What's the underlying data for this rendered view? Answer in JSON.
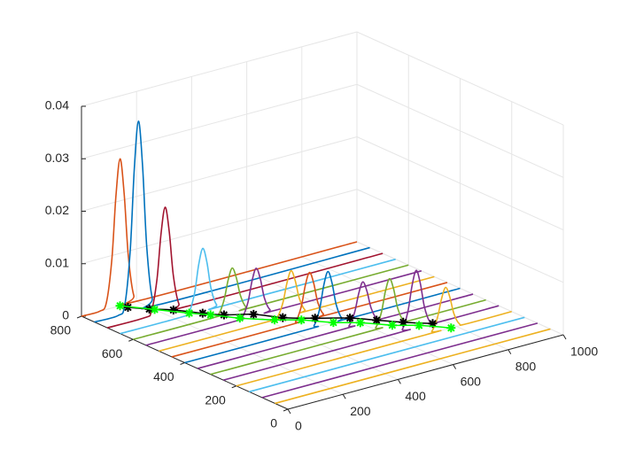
{
  "chart_data": {
    "type": "line3d",
    "xlim": [
      0,
      1000
    ],
    "xticks": [
      0,
      200,
      400,
      600,
      800,
      1000
    ],
    "ylim": [
      0,
      800
    ],
    "yticks": [
      0,
      200,
      400,
      600,
      800
    ],
    "zlim": [
      0,
      0.04
    ],
    "zticks": [
      0,
      0.01,
      0.02,
      0.03,
      0.04
    ],
    "grid": true,
    "series": [
      {
        "y": 800,
        "color": "#D95319",
        "x": [
          0,
          65,
          90,
          110,
          125,
          140,
          155,
          170,
          190,
          215,
          1000
        ],
        "values": [
          0,
          0,
          0.00123,
          0.0091,
          0.0211,
          0.028,
          0.0211,
          0.0091,
          0.00123,
          0,
          0
        ]
      },
      {
        "y": 750,
        "color": "#0072BD",
        "x": [
          0,
          85,
          110,
          130,
          145,
          160,
          175,
          190,
          210,
          235,
          1000
        ],
        "values": [
          0,
          0,
          0.00158,
          0.0117,
          0.0272,
          0.036,
          0.0272,
          0.0117,
          0.00158,
          0,
          0
        ]
      },
      {
        "y": 700,
        "color": "#A2142F",
        "x": [
          0,
          135,
          160,
          180,
          195,
          210,
          225,
          240,
          260,
          285,
          1000
        ],
        "values": [
          0,
          0,
          0.00088,
          0.0065,
          0.0151,
          0.02,
          0.0151,
          0.0065,
          0.00088,
          0,
          0
        ]
      },
      {
        "y": 650,
        "color": "#4DBEEE",
        "x": [
          0,
          225,
          250,
          270,
          285,
          300,
          315,
          330,
          350,
          375,
          1000
        ],
        "values": [
          0,
          0,
          0.00053,
          0.0039,
          0.0091,
          0.012,
          0.0091,
          0.0039,
          0.00053,
          0,
          0
        ]
      },
      {
        "y": 600,
        "color": "#77AC30",
        "x": [
          0,
          285,
          310,
          330,
          345,
          360,
          375,
          390,
          410,
          435,
          1000
        ],
        "values": [
          0,
          0,
          0.00037,
          0.0028,
          0.0064,
          0.0085,
          0.0064,
          0.0028,
          0.00037,
          0,
          0
        ]
      },
      {
        "y": 550,
        "color": "#7E2F8E",
        "x": [
          0,
          325,
          350,
          370,
          385,
          400,
          415,
          430,
          450,
          475,
          1000
        ],
        "values": [
          0,
          0,
          0.0004,
          0.0029,
          0.0068,
          0.009,
          0.0068,
          0.0029,
          0.0004,
          0,
          0
        ]
      },
      {
        "y": 500,
        "color": "#EDB120",
        "x": [
          0,
          405,
          430,
          450,
          465,
          480,
          495,
          510,
          530,
          555,
          1000
        ],
        "values": [
          0,
          0,
          0.00037,
          0.0028,
          0.0064,
          0.0085,
          0.0064,
          0.0028,
          0.00037,
          0,
          0
        ]
      },
      {
        "y": 450,
        "color": "#D95319",
        "x": [
          0,
          425,
          450,
          470,
          485,
          500,
          515,
          530,
          550,
          575,
          1000
        ],
        "values": [
          0,
          0,
          0.0004,
          0.0029,
          0.0068,
          0.009,
          0.0068,
          0.0029,
          0.0004,
          0,
          0
        ]
      },
      {
        "y": 400,
        "color": "#0072BD",
        "x": [
          0,
          445,
          470,
          490,
          505,
          520,
          535,
          550,
          570,
          595,
          1000
        ],
        "values": [
          0,
          0,
          0.00044,
          0.0033,
          0.0076,
          0.01,
          0.0076,
          0.0033,
          0.00044,
          0,
          0
        ]
      },
      {
        "y": 350,
        "color": "#7E2F8E",
        "x": [
          0,
          525,
          550,
          570,
          585,
          600,
          615,
          630,
          650,
          675,
          1000
        ],
        "values": [
          0,
          0,
          0.00035,
          0.0026,
          0.006,
          0.008,
          0.006,
          0.0026,
          0.00035,
          0,
          0
        ]
      },
      {
        "y": 300,
        "color": "#77AC30",
        "x": [
          0,
          575,
          600,
          620,
          635,
          650,
          665,
          680,
          700,
          725,
          1000
        ],
        "values": [
          0,
          0,
          0.0004,
          0.0029,
          0.0068,
          0.009,
          0.0068,
          0.0029,
          0.0004,
          0,
          0
        ]
      },
      {
        "y": 250,
        "color": "#7E2F8E",
        "x": [
          0,
          625,
          650,
          670,
          685,
          700,
          715,
          730,
          750,
          775,
          1000
        ],
        "values": [
          0,
          0,
          0.00048,
          0.0036,
          0.0083,
          0.011,
          0.0083,
          0.0036,
          0.00048,
          0,
          0
        ]
      },
      {
        "y": 200,
        "color": "#EDB120",
        "x": [
          0,
          685,
          710,
          730,
          745,
          760,
          775,
          790,
          810,
          835,
          1000
        ],
        "values": [
          0,
          0,
          0.00035,
          0.0026,
          0.006,
          0.008,
          0.006,
          0.0026,
          0.00035,
          0,
          0
        ]
      },
      {
        "y": 150,
        "color": "#4DBEEE",
        "x": [
          0,
          1000
        ],
        "values": [
          0,
          0
        ]
      },
      {
        "y": 100,
        "color": "#7E2F8E",
        "x": [
          0,
          1000
        ],
        "values": [
          0,
          0
        ]
      },
      {
        "y": 50,
        "color": "#EDB120",
        "x": [
          0,
          1000
        ],
        "values": [
          0,
          0
        ]
      }
    ],
    "tracks": [
      {
        "color": "#000000",
        "x": [
          150,
          190,
          240,
          290,
          330,
          400,
          450,
          520,
          600,
          650,
          700,
          760
        ],
        "y": [
          780,
          740,
          700,
          640,
          600,
          560,
          500,
          450,
          400,
          350,
          300,
          250
        ]
      },
      {
        "color": "#00FF00",
        "x": [
          140,
          200,
          260,
          300,
          350,
          420,
          480,
          540,
          600,
          660,
          720,
          780
        ],
        "y": [
          800,
          730,
          660,
          620,
          560,
          500,
          460,
          400,
          360,
          300,
          260,
          200
        ]
      }
    ]
  }
}
